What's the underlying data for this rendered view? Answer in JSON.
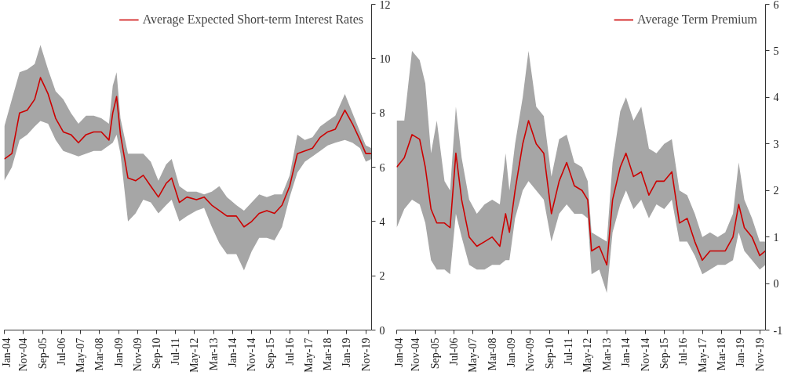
{
  "chart_data": [
    {
      "type": "line",
      "x": [
        "2004-01",
        "2004-05",
        "2004-09",
        "2005-01",
        "2005-05",
        "2005-08",
        "2005-12",
        "2006-04",
        "2006-08",
        "2006-12",
        "2007-04",
        "2007-08",
        "2007-12",
        "2008-04",
        "2008-08",
        "2008-10",
        "2008-12",
        "2009-02",
        "2009-06",
        "2009-10",
        "2010-02",
        "2010-06",
        "2010-10",
        "2011-02",
        "2011-05",
        "2011-09",
        "2012-01",
        "2012-06",
        "2012-10",
        "2013-02",
        "2013-06",
        "2013-10",
        "2014-03",
        "2014-07",
        "2014-11",
        "2015-03",
        "2015-07",
        "2015-11",
        "2016-03",
        "2016-07",
        "2016-11",
        "2017-03",
        "2017-07",
        "2017-11",
        "2018-03",
        "2018-07",
        "2018-12",
        "2019-04",
        "2019-08",
        "2019-11",
        "2020-02"
      ],
      "series": [
        {
          "name": "Average Expected Short-term Interest Rates",
          "color": "#cc0000",
          "values": [
            6.3,
            6.5,
            8.0,
            8.1,
            8.5,
            9.3,
            8.7,
            7.8,
            7.3,
            7.2,
            6.9,
            7.2,
            7.3,
            7.3,
            7.0,
            8.0,
            8.6,
            7.2,
            5.6,
            5.5,
            5.7,
            5.3,
            4.9,
            5.4,
            5.6,
            4.7,
            4.9,
            4.8,
            4.9,
            4.6,
            4.4,
            4.2,
            4.2,
            3.8,
            4.0,
            4.3,
            4.4,
            4.3,
            4.6,
            5.3,
            6.5,
            6.6,
            6.7,
            7.1,
            7.3,
            7.4,
            8.1,
            7.6,
            7.0,
            6.5,
            6.5
          ],
          "lower": [
            5.5,
            6.0,
            7.0,
            7.2,
            7.5,
            7.7,
            7.6,
            7.0,
            6.6,
            6.5,
            6.4,
            6.5,
            6.6,
            6.6,
            6.8,
            6.9,
            7.2,
            6.5,
            4.0,
            4.3,
            4.8,
            4.7,
            4.3,
            4.6,
            4.8,
            4.0,
            4.2,
            4.4,
            4.5,
            3.8,
            3.2,
            2.8,
            2.8,
            2.2,
            2.9,
            3.4,
            3.4,
            3.3,
            3.8,
            4.9,
            5.8,
            6.2,
            6.4,
            6.6,
            6.8,
            6.9,
            7.0,
            6.9,
            6.7,
            6.2,
            6.3
          ],
          "upper": [
            7.5,
            8.5,
            9.5,
            9.6,
            9.8,
            10.5,
            9.6,
            8.8,
            8.5,
            8.0,
            7.6,
            7.9,
            7.9,
            7.8,
            7.6,
            9.0,
            9.5,
            7.8,
            6.5,
            6.5,
            6.5,
            6.2,
            5.5,
            6.1,
            6.3,
            5.3,
            5.1,
            5.1,
            5.0,
            5.1,
            5.3,
            4.9,
            4.6,
            4.4,
            4.7,
            5.0,
            4.9,
            5.0,
            5.0,
            5.7,
            7.2,
            7.0,
            7.1,
            7.5,
            7.7,
            7.9,
            8.7,
            8.0,
            7.3,
            6.8,
            6.7
          ]
        }
      ],
      "xlim": [
        "2004-01",
        "2020-02"
      ],
      "xticks": [
        {
          "value": "2004-01",
          "label": "Jan-04"
        },
        {
          "value": "2004-11",
          "label": "Nov-04"
        },
        {
          "value": "2005-09",
          "label": "Sep-05"
        },
        {
          "value": "2006-07",
          "label": "Jul-06"
        },
        {
          "value": "2007-05",
          "label": "May-07"
        },
        {
          "value": "2008-03",
          "label": "Mar-08"
        },
        {
          "value": "2009-01",
          "label": "Jan-09"
        },
        {
          "value": "2009-11",
          "label": "Nov-09"
        },
        {
          "value": "2010-09",
          "label": "Sep-10"
        },
        {
          "value": "2011-07",
          "label": "Jul-11"
        },
        {
          "value": "2012-05",
          "label": "May-12"
        },
        {
          "value": "2013-03",
          "label": "Mar-13"
        },
        {
          "value": "2014-01",
          "label": "Jan-14"
        },
        {
          "value": "2014-11",
          "label": "Nov-14"
        },
        {
          "value": "2015-09",
          "label": "Sep-15"
        },
        {
          "value": "2016-07",
          "label": "Jul-16"
        },
        {
          "value": "2017-05",
          "label": "May-17"
        },
        {
          "value": "2018-03",
          "label": "Mar-18"
        },
        {
          "value": "2019-01",
          "label": "Jan-19"
        },
        {
          "value": "2019-11",
          "label": "Nov-19"
        }
      ],
      "ylim": [
        0,
        12
      ],
      "yticks": [
        0,
        2,
        4,
        6,
        8,
        10,
        12
      ],
      "grid": false,
      "legend": "top right"
    },
    {
      "type": "line",
      "x": [
        "2004-01",
        "2004-05",
        "2004-09",
        "2005-01",
        "2005-04",
        "2005-07",
        "2005-10",
        "2006-02",
        "2006-05",
        "2006-08",
        "2006-11",
        "2007-03",
        "2007-07",
        "2007-11",
        "2008-03",
        "2008-07",
        "2008-10",
        "2008-12",
        "2009-03",
        "2009-07",
        "2009-10",
        "2010-02",
        "2010-06",
        "2010-10",
        "2011-02",
        "2011-06",
        "2011-10",
        "2012-02",
        "2012-05",
        "2012-07",
        "2012-11",
        "2013-03",
        "2013-06",
        "2013-10",
        "2014-01",
        "2014-05",
        "2014-09",
        "2015-01",
        "2015-05",
        "2015-09",
        "2016-01",
        "2016-05",
        "2016-09",
        "2017-01",
        "2017-05",
        "2017-09",
        "2018-01",
        "2018-05",
        "2018-09",
        "2018-12",
        "2019-03",
        "2019-07",
        "2019-11",
        "2020-02"
      ],
      "series": [
        {
          "name": "Average Term Premium",
          "color": "#cc0000",
          "values": [
            2.5,
            2.7,
            3.2,
            3.1,
            2.5,
            1.6,
            1.3,
            1.3,
            1.2,
            2.8,
            1.8,
            1.0,
            0.8,
            0.9,
            1.0,
            0.8,
            1.5,
            1.1,
            2.0,
            3.0,
            3.5,
            3.0,
            2.8,
            1.5,
            2.2,
            2.6,
            2.1,
            2.0,
            1.8,
            0.7,
            0.8,
            0.4,
            1.8,
            2.5,
            2.8,
            2.3,
            2.4,
            1.9,
            2.2,
            2.2,
            2.4,
            1.3,
            1.4,
            0.9,
            0.5,
            0.7,
            0.7,
            0.7,
            1.0,
            1.7,
            1.2,
            1.0,
            0.6,
            0.7
          ],
          "lower": [
            1.2,
            1.6,
            1.8,
            1.7,
            1.3,
            0.5,
            0.3,
            0.3,
            0.2,
            1.5,
            1.0,
            0.4,
            0.3,
            0.3,
            0.4,
            0.4,
            0.5,
            0.5,
            1.4,
            2.0,
            2.2,
            2.0,
            1.8,
            0.9,
            1.5,
            1.7,
            1.5,
            1.5,
            1.4,
            0.2,
            0.3,
            -0.2,
            1.1,
            1.7,
            2.0,
            1.6,
            1.8,
            1.4,
            1.7,
            1.6,
            1.8,
            0.9,
            0.9,
            0.6,
            0.2,
            0.3,
            0.4,
            0.4,
            0.5,
            1.1,
            0.7,
            0.5,
            0.3,
            0.4
          ],
          "upper": [
            3.5,
            3.5,
            5.0,
            4.8,
            4.3,
            2.8,
            3.5,
            2.2,
            2.0,
            3.8,
            2.7,
            1.8,
            1.5,
            1.7,
            1.8,
            1.7,
            2.8,
            2.0,
            3.0,
            4.0,
            5.0,
            3.8,
            3.6,
            2.3,
            3.1,
            3.2,
            2.6,
            2.5,
            2.2,
            1.1,
            1.0,
            0.9,
            2.6,
            3.7,
            4.0,
            3.5,
            3.8,
            2.9,
            2.8,
            3.0,
            3.1,
            2.0,
            1.9,
            1.5,
            1.0,
            1.1,
            1.0,
            1.1,
            1.5,
            2.6,
            1.8,
            1.4,
            0.9,
            0.9
          ]
        }
      ],
      "xlim": [
        "2004-01",
        "2020-02"
      ],
      "xticks": [
        {
          "value": "2004-01",
          "label": "Jan-04"
        },
        {
          "value": "2004-11",
          "label": "Nov-04"
        },
        {
          "value": "2005-09",
          "label": "Sep-05"
        },
        {
          "value": "2006-07",
          "label": "Jul-06"
        },
        {
          "value": "2007-05",
          "label": "May-07"
        },
        {
          "value": "2008-03",
          "label": "Mar-08"
        },
        {
          "value": "2009-01",
          "label": "Jan-09"
        },
        {
          "value": "2009-11",
          "label": "Nov-09"
        },
        {
          "value": "2010-09",
          "label": "Sep-10"
        },
        {
          "value": "2011-07",
          "label": "Jul-11"
        },
        {
          "value": "2012-05",
          "label": "May-12"
        },
        {
          "value": "2013-03",
          "label": "Mar-13"
        },
        {
          "value": "2014-01",
          "label": "Jan-14"
        },
        {
          "value": "2014-11",
          "label": "Nov-14"
        },
        {
          "value": "2015-09",
          "label": "Sep-15"
        },
        {
          "value": "2016-07",
          "label": "Jul-16"
        },
        {
          "value": "2017-05",
          "label": "May-17"
        },
        {
          "value": "2018-03",
          "label": "Mar-18"
        },
        {
          "value": "2019-01",
          "label": "Jan-19"
        },
        {
          "value": "2019-11",
          "label": "Nov-19"
        }
      ],
      "ylim": [
        -1,
        6
      ],
      "yticks": [
        -1,
        0,
        1,
        2,
        3,
        4,
        5,
        6
      ],
      "grid": false,
      "legend": "top right"
    }
  ]
}
